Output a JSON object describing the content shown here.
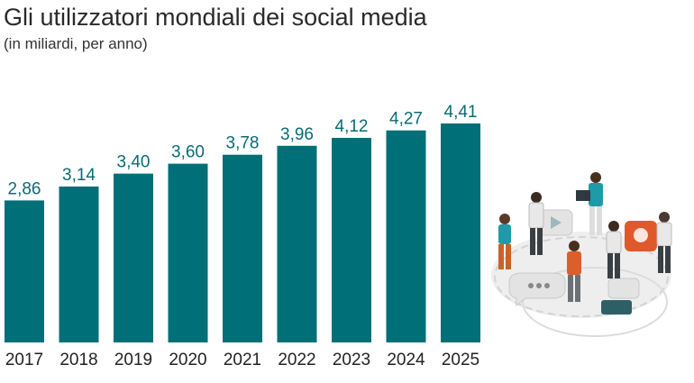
{
  "header": {
    "title": "Gli utilizzatori mondiali dei social media",
    "subtitle": "(in miliardi, per anno)"
  },
  "colors": {
    "bar": "#006f78",
    "value_label": "#0b6a73",
    "axis_text": "#222222"
  },
  "illustration": {
    "description_icon": "people-social-media-icon"
  },
  "chart_data": {
    "type": "bar",
    "title": "Gli utilizzatori mondiali dei social media",
    "subtitle": "(in miliardi, per anno)",
    "categories": [
      "2017",
      "2018",
      "2019",
      "2020",
      "2021",
      "2022",
      "2023",
      "2024",
      "2025"
    ],
    "values": [
      2.86,
      3.14,
      3.4,
      3.6,
      3.78,
      3.96,
      4.12,
      4.27,
      4.41
    ],
    "value_labels": [
      "2,86",
      "3,14",
      "3,40",
      "3,60",
      "3,78",
      "3,96",
      "4,12",
      "4,27",
      "4,41"
    ],
    "ylim": [
      0,
      4.41
    ],
    "grid": false,
    "legend": "none"
  }
}
